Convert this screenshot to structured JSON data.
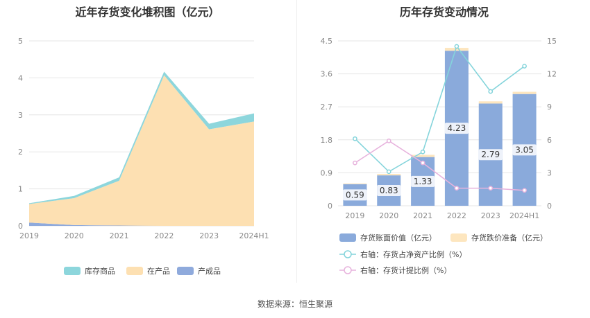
{
  "source": "数据来源：恒生聚源",
  "chart_data": [
    {
      "type": "area",
      "stacked": true,
      "title": "近年存货变化堆积图（亿元）",
      "categories": [
        "2019",
        "2020",
        "2021",
        "2022",
        "2023",
        "2024H1"
      ],
      "y_ticks": [
        "0",
        "1",
        "2",
        "3",
        "4",
        "5"
      ],
      "ylim": [
        0,
        5
      ],
      "series": [
        {
          "name": "库存商品",
          "color": "#8dd6dc",
          "values": [
            0.02,
            0.06,
            0.09,
            0.1,
            0.15,
            0.22
          ]
        },
        {
          "name": "在产品",
          "color": "#fde0b2",
          "values": [
            0.5,
            0.73,
            1.21,
            4.07,
            2.61,
            2.82
          ]
        },
        {
          "name": "产成品",
          "color": "#8faadc",
          "values": [
            0.09,
            0.02,
            0.01,
            0.0,
            0.0,
            0.0
          ]
        }
      ],
      "legend_position": "bottom",
      "grid": true
    },
    {
      "type": "bar",
      "title": "历年存货变动情况",
      "categories": [
        "2019",
        "2020",
        "2021",
        "2022",
        "2023",
        "2024H1"
      ],
      "y_ticks_left": [
        "0",
        "0.9",
        "1.8",
        "2.7",
        "3.6",
        "4.5"
      ],
      "y_ticks_right": [
        "0",
        "3",
        "6",
        "9",
        "12",
        "15"
      ],
      "ylim_left": [
        0,
        4.5
      ],
      "ylim_right": [
        0,
        15
      ],
      "series": [
        {
          "name": "存货账面价值（亿元）",
          "kind": "bar",
          "axis": "left",
          "color": "#8aaadb",
          "values": [
            0.59,
            0.83,
            1.33,
            4.23,
            2.79,
            3.05
          ],
          "labels": [
            "0.59",
            "0.83",
            "1.33",
            "4.23",
            "2.79",
            "3.05"
          ]
        },
        {
          "name": "存货跌价准备（亿元）",
          "kind": "bar_stack",
          "axis": "left",
          "color": "#fde6bf",
          "values": [
            0.02,
            0.04,
            0.06,
            0.08,
            0.06,
            0.06
          ]
        },
        {
          "name": "右轴：存货占净资产比例（%）",
          "kind": "line",
          "axis": "right",
          "color": "#84d4db",
          "values": [
            6.1,
            3.1,
            4.9,
            14.5,
            10.4,
            12.7
          ]
        },
        {
          "name": "右轴：存货计提比例（%）",
          "kind": "line",
          "axis": "right",
          "color": "#e7b3dd",
          "values": [
            3.9,
            5.9,
            3.9,
            1.6,
            1.6,
            1.4
          ]
        }
      ],
      "legend_position": "bottom",
      "grid": true
    }
  ]
}
